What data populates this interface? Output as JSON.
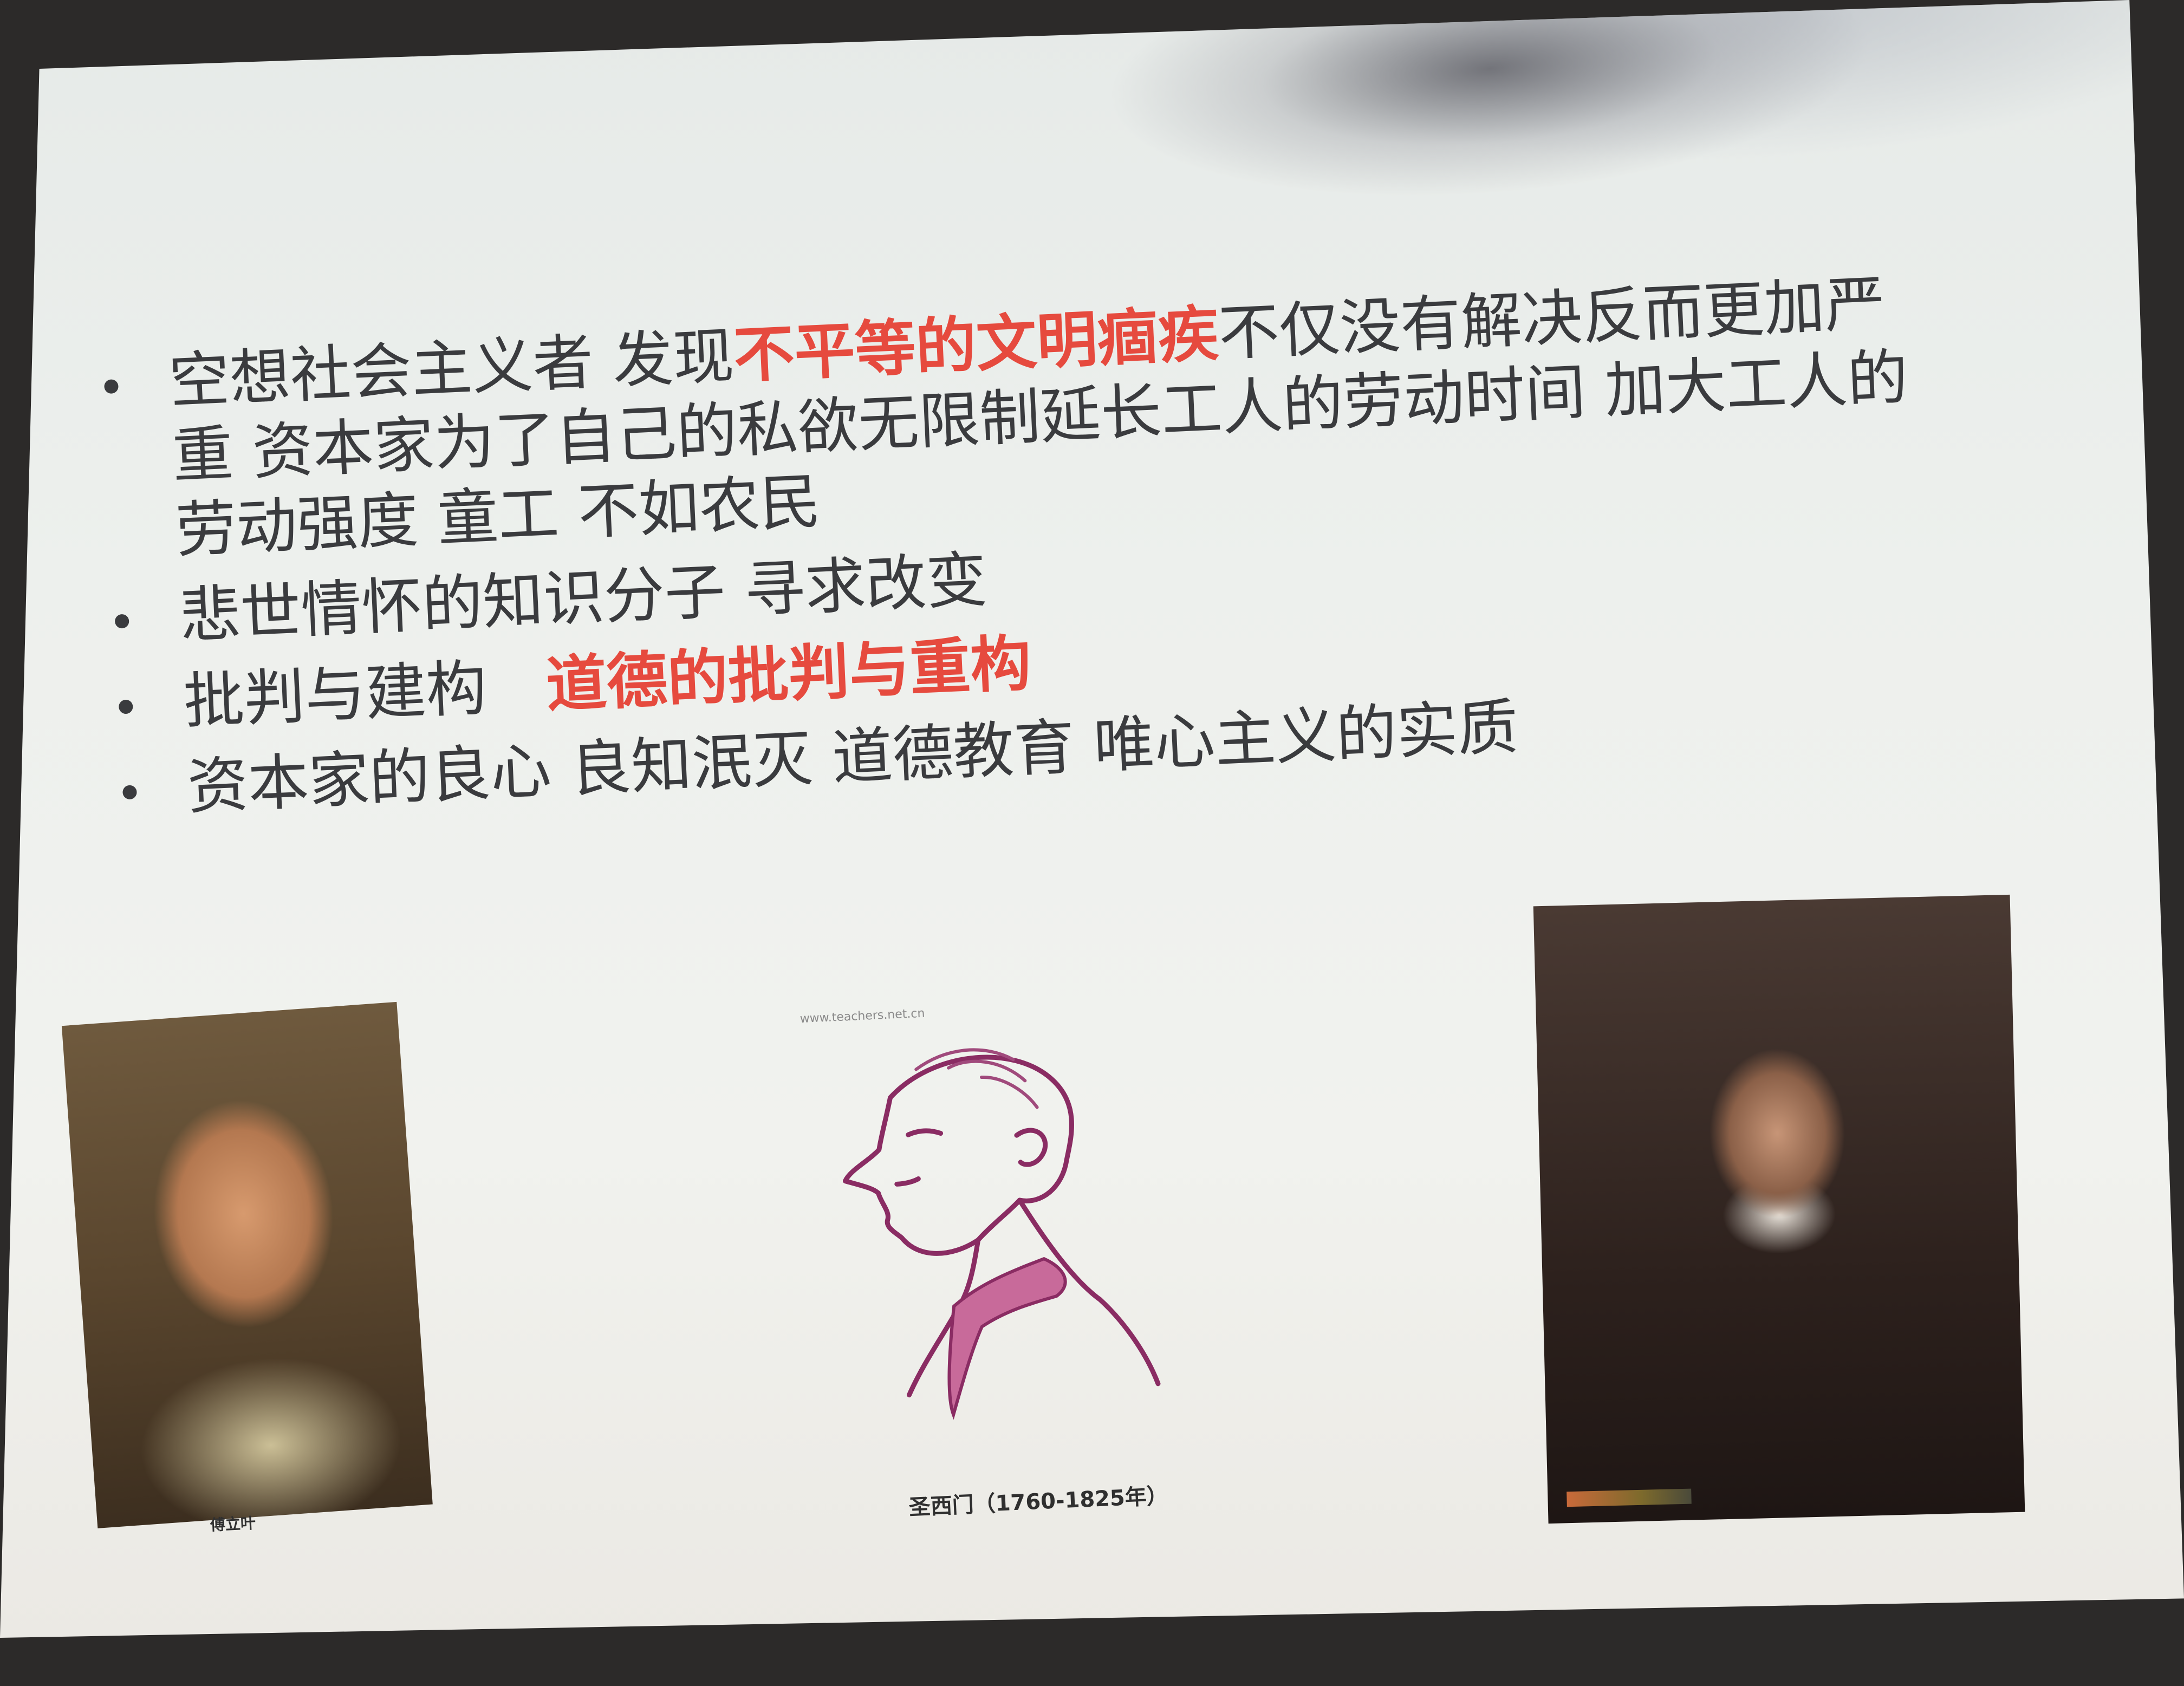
{
  "slide": {
    "bullets": [
      {
        "part1": "空想社会主义者  发现",
        "highlight": "不平等的文明痼疾",
        "part2": "不仅没有解决反而更加严重  资本家为了自己的私欲无限制延长工人的劳动时间  加大工人的劳动强度  童工  不如农民"
      },
      {
        "text": "悲世情怀的知识分子  寻求改变"
      },
      {
        "text": "批判与建构",
        "highlight": "道德的批判与重构"
      },
      {
        "text": "资本家的良心  良知泯灭  道德教育  唯心主义的实质"
      }
    ],
    "portraits": [
      {
        "caption": "傅立叶"
      },
      {
        "caption": "圣西门（1760-1825年）",
        "watermark": "www.teachers.net.cn"
      },
      {
        "caption": ""
      }
    ]
  },
  "colors": {
    "text": "#3a3b3e",
    "highlight": "#e64a3e",
    "screen": "#eef0ec"
  }
}
